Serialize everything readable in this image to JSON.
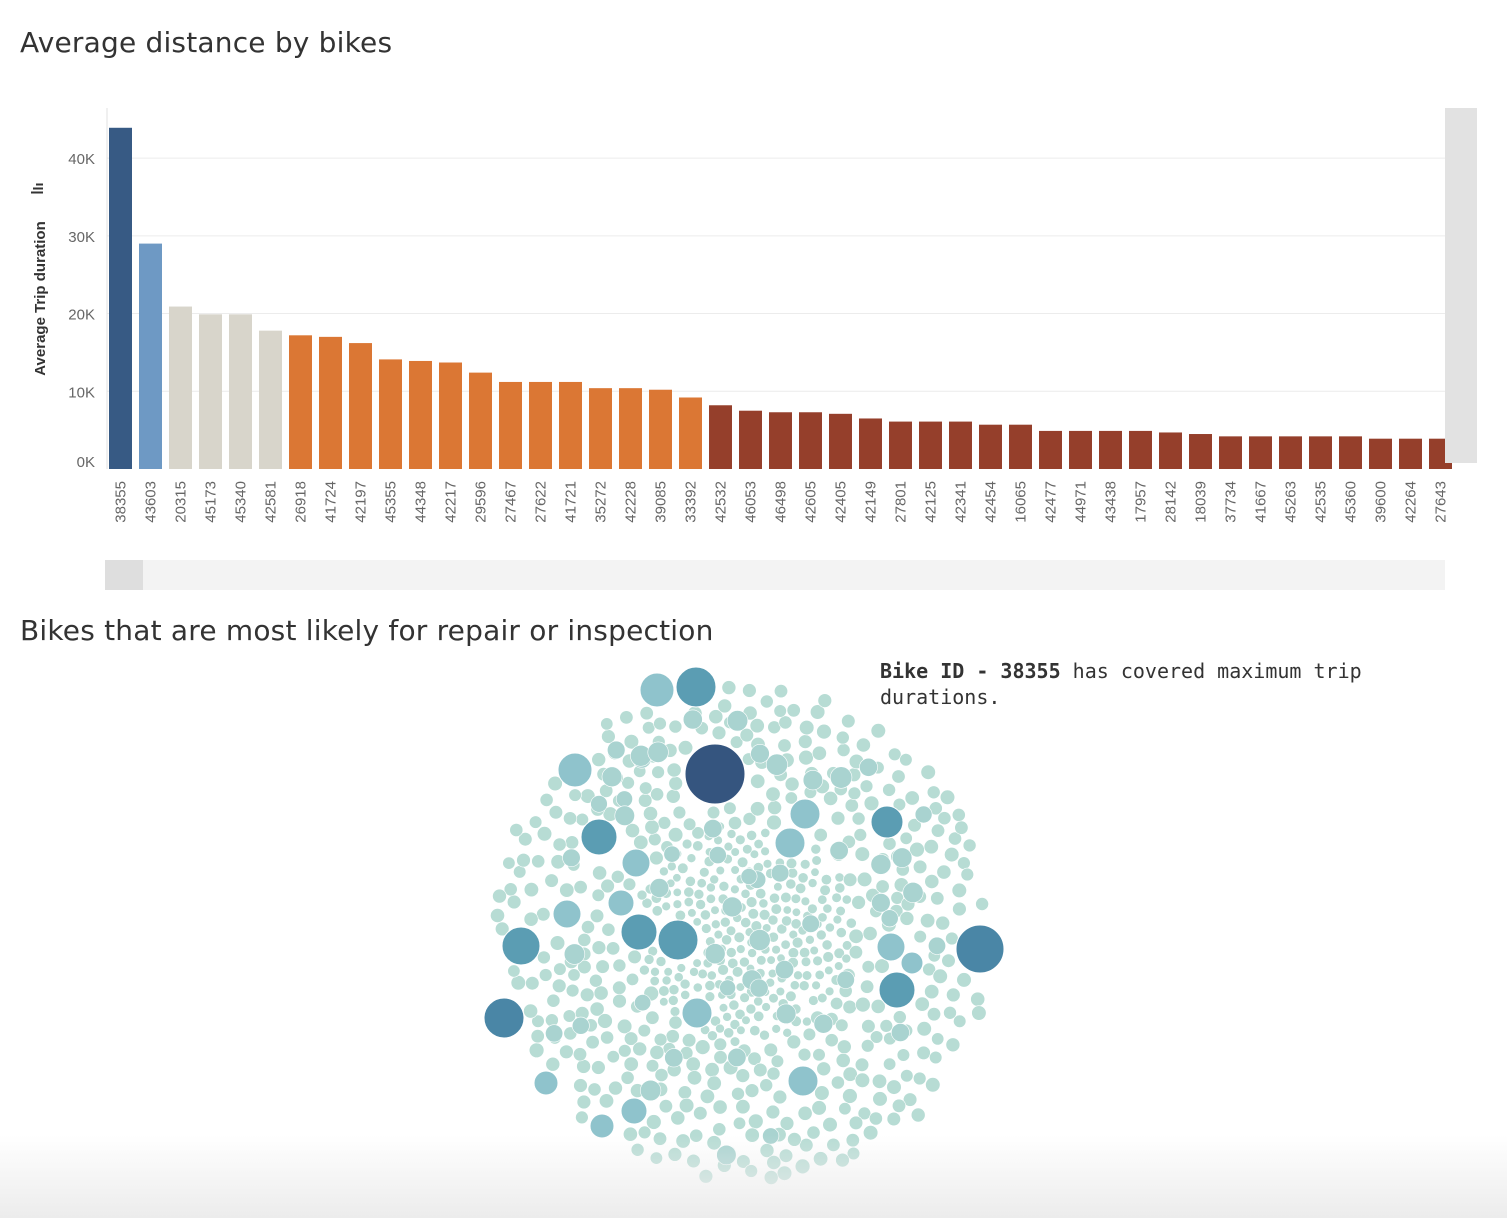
{
  "titles": {
    "bar_chart": "Average distance by bikes",
    "bubble_chart": "Bikes that are most likely for repair or inspection"
  },
  "annotation": {
    "prefix": "Bike ID - 38355",
    "suffix": " has covered maximum trip durations."
  },
  "sort_icon": "sort-descending-icon",
  "colors": {
    "top": "#375a84",
    "second": "#6e99c4",
    "high": "#d8d5cb",
    "mid": "#db7734",
    "low": "#953f2b",
    "bubble_small": "#b7dcd4",
    "bubble_med": "#8fc3cc",
    "bubble_large": "#5b9db3",
    "bubble_xl": "#4a86a6",
    "bubble_max": "#35557f"
  },
  "chart_data": [
    {
      "type": "bar",
      "title": "Average distance by bikes",
      "xlabel": "",
      "ylabel": "Average Trip duration",
      "ylim": [
        0,
        44000
      ],
      "yticks": [
        "0K",
        "10K",
        "20K",
        "30K",
        "40K"
      ],
      "grid": true,
      "categories": [
        "38355",
        "43603",
        "20315",
        "45173",
        "45340",
        "42581",
        "26918",
        "41724",
        "42197",
        "45355",
        "44348",
        "42217",
        "29596",
        "27467",
        "27622",
        "41721",
        "35272",
        "42228",
        "39085",
        "33392",
        "42532",
        "46053",
        "46498",
        "42605",
        "42405",
        "42149",
        "27801",
        "42125",
        "42341",
        "42454",
        "16065",
        "42477",
        "44971",
        "43438",
        "17957",
        "28142",
        "18039",
        "37734",
        "41667",
        "45263",
        "42535",
        "45360",
        "39600",
        "42264",
        "27643"
      ],
      "values": [
        43900,
        29000,
        20900,
        19900,
        19900,
        17800,
        17200,
        17000,
        16200,
        14100,
        13900,
        13700,
        12400,
        11200,
        11200,
        11200,
        10400,
        10400,
        10200,
        9200,
        8200,
        7500,
        7300,
        7300,
        7100,
        6500,
        6100,
        6100,
        6100,
        5700,
        5700,
        4900,
        4900,
        4900,
        4900,
        4700,
        4500,
        4200,
        4200,
        4200,
        4200,
        4200,
        3900,
        3900,
        3900
      ],
      "color_groups": [
        "top",
        "second",
        "high",
        "high",
        "high",
        "high",
        "mid",
        "mid",
        "mid",
        "mid",
        "mid",
        "mid",
        "mid",
        "mid",
        "mid",
        "mid",
        "mid",
        "mid",
        "mid",
        "mid",
        "low",
        "low",
        "low",
        "low",
        "low",
        "low",
        "low",
        "low",
        "low",
        "low",
        "low",
        "low",
        "low",
        "low",
        "low",
        "low",
        "low",
        "low",
        "low",
        "low",
        "low",
        "low",
        "low",
        "low",
        "low"
      ]
    },
    {
      "type": "bubble",
      "title": "Bikes that are most likely for repair or inspection",
      "description_note": "packed bubbles sized by average trip duration per bike; largest bubble is bike 38355",
      "highlight": "38355"
    }
  ]
}
